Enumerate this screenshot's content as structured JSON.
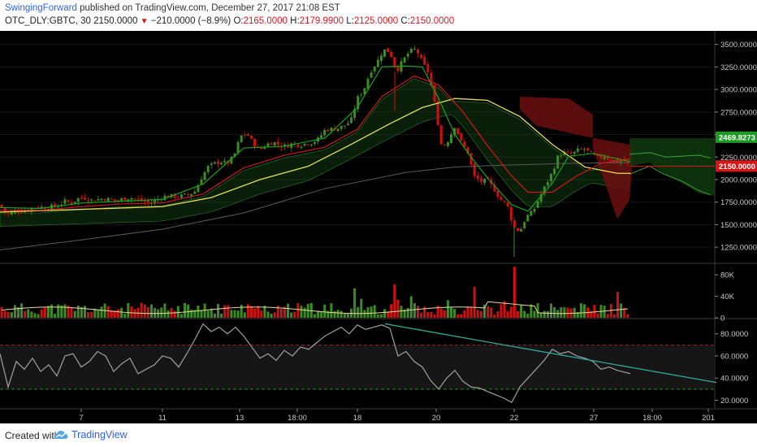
{
  "header": {
    "author": "SwingingForward",
    "published": "published on TradingView.com, December 27, 2017 21:08 EST",
    "symbol": "OTC_DLY:GBTC, 30",
    "last": "2150.0000",
    "change": "−210.0000 (−8.9%)",
    "o_label": "O:",
    "o_value": "2165.0000",
    "h_label": "H:",
    "h_value": "2179.9900",
    "l_label": "L:",
    "l_value": "2125.0000",
    "c_label": "C:",
    "c_value": "2150.0000"
  },
  "footer": {
    "created": "Created with",
    "brand": "TradingView"
  },
  "colors": {
    "up": "#3c8c23",
    "down": "#d01010",
    "ema_fast": "#19a319",
    "ema_slow": "#d01818",
    "ma_long": "#e6e050",
    "rsi": "#a0a0a0",
    "trend": "#30a89a"
  },
  "chart_data": [
    {
      "type": "candlestick",
      "panel": "price",
      "y_ticks": [
        "3500.0000",
        "3250.0000",
        "3000.0000",
        "2750.0000",
        "2500.0000",
        "2250.0000",
        "2000.0000",
        "1750.0000",
        "1500.0000",
        "1250.0000"
      ],
      "y_values": [
        3500,
        3250,
        3000,
        2750,
        2500,
        2250,
        2000,
        1750,
        1500,
        1250
      ],
      "ylim": [
        1080,
        3650
      ],
      "x_ticks": [
        "7",
        "11",
        "13",
        "18:00",
        "18",
        "20",
        "22",
        "27",
        "18:00",
        "201"
      ],
      "price_labels": [
        {
          "value": 2469.8273,
          "text": "2469.8273",
          "color": "#1d9a22"
        },
        {
          "value": 2150,
          "text": "2150.0000",
          "color": "#d81616"
        }
      ],
      "close_path": [
        [
          0,
          1720
        ],
        [
          8,
          1610
        ],
        [
          16,
          1640
        ],
        [
          24,
          1660
        ],
        [
          32,
          1650
        ],
        [
          40,
          1690
        ],
        [
          48,
          1700
        ],
        [
          56,
          1690
        ],
        [
          64,
          1700
        ],
        [
          72,
          1710
        ],
        [
          80,
          1760
        ],
        [
          88,
          1740
        ],
        [
          96,
          1790
        ],
        [
          104,
          1800
        ],
        [
          112,
          1770
        ],
        [
          120,
          1780
        ],
        [
          128,
          1790
        ],
        [
          136,
          1780
        ],
        [
          144,
          1760
        ],
        [
          152,
          1790
        ],
        [
          160,
          1800
        ],
        [
          168,
          1780
        ],
        [
          176,
          1760
        ],
        [
          184,
          1740
        ],
        [
          192,
          1770
        ],
        [
          200,
          1810
        ],
        [
          208,
          1820
        ],
        [
          216,
          1810
        ],
        [
          224,
          1820
        ],
        [
          232,
          1830
        ],
        [
          240,
          1870
        ],
        [
          248,
          2020
        ],
        [
          256,
          2140
        ],
        [
          264,
          2180
        ],
        [
          272,
          2200
        ],
        [
          280,
          2180
        ],
        [
          288,
          2260
        ],
        [
          296,
          2480
        ],
        [
          304,
          2510
        ],
        [
          312,
          2400
        ],
        [
          320,
          2330
        ],
        [
          328,
          2390
        ],
        [
          336,
          2420
        ],
        [
          344,
          2380
        ],
        [
          352,
          2370
        ],
        [
          360,
          2400
        ],
        [
          368,
          2380
        ],
        [
          376,
          2400
        ],
        [
          384,
          2410
        ],
        [
          392,
          2450
        ],
        [
          400,
          2550
        ],
        [
          408,
          2560
        ],
        [
          416,
          2570
        ],
        [
          424,
          2600
        ],
        [
          432,
          2650
        ],
        [
          440,
          2900
        ],
        [
          448,
          3000
        ],
        [
          456,
          3200
        ],
        [
          464,
          3300
        ],
        [
          472,
          3440
        ],
        [
          480,
          3420
        ],
        [
          488,
          3200
        ],
        [
          496,
          3320
        ],
        [
          504,
          3420
        ],
        [
          512,
          3450
        ],
        [
          520,
          3300
        ],
        [
          528,
          3180
        ],
        [
          536,
          2800
        ],
        [
          544,
          2350
        ],
        [
          552,
          2440
        ],
        [
          560,
          2600
        ],
        [
          568,
          2410
        ],
        [
          576,
          2300
        ],
        [
          584,
          2030
        ],
        [
          592,
          1980
        ],
        [
          600,
          1990
        ],
        [
          608,
          1900
        ],
        [
          616,
          1780
        ],
        [
          624,
          1730
        ],
        [
          632,
          1480
        ],
        [
          640,
          1420
        ],
        [
          648,
          1590
        ],
        [
          656,
          1640
        ],
        [
          664,
          1800
        ],
        [
          672,
          1940
        ],
        [
          680,
          2080
        ],
        [
          688,
          2280
        ],
        [
          696,
          2300
        ],
        [
          704,
          2280
        ],
        [
          712,
          2330
        ],
        [
          720,
          2340
        ],
        [
          728,
          2280
        ],
        [
          736,
          2240
        ],
        [
          744,
          2260
        ],
        [
          752,
          2220
        ],
        [
          760,
          2200
        ],
        [
          768,
          2210
        ],
        [
          776,
          2150
        ]
      ],
      "ema_fast": [
        [
          0,
          1690
        ],
        [
          50,
          1680
        ],
        [
          100,
          1740
        ],
        [
          150,
          1760
        ],
        [
          200,
          1780
        ],
        [
          250,
          1950
        ],
        [
          300,
          2350
        ],
        [
          350,
          2370
        ],
        [
          400,
          2460
        ],
        [
          440,
          2800
        ],
        [
          470,
          3250
        ],
        [
          500,
          3260
        ],
        [
          520,
          3250
        ],
        [
          540,
          2900
        ],
        [
          560,
          2500
        ],
        [
          580,
          2250
        ],
        [
          600,
          2020
        ],
        [
          630,
          1720
        ],
        [
          650,
          1650
        ],
        [
          680,
          1960
        ],
        [
          700,
          2260
        ],
        [
          730,
          2290
        ],
        [
          776,
          2200
        ]
      ],
      "ema_slow": [
        [
          0,
          1660
        ],
        [
          50,
          1660
        ],
        [
          100,
          1700
        ],
        [
          150,
          1730
        ],
        [
          200,
          1740
        ],
        [
          250,
          1840
        ],
        [
          300,
          2130
        ],
        [
          350,
          2270
        ],
        [
          400,
          2360
        ],
        [
          440,
          2560
        ],
        [
          470,
          2920
        ],
        [
          510,
          3150
        ],
        [
          540,
          3050
        ],
        [
          570,
          2750
        ],
        [
          600,
          2380
        ],
        [
          630,
          2040
        ],
        [
          650,
          1860
        ],
        [
          680,
          1860
        ],
        [
          710,
          2040
        ],
        [
          740,
          2180
        ],
        [
          776,
          2230
        ]
      ],
      "ma_long": [
        [
          0,
          1640
        ],
        [
          100,
          1670
        ],
        [
          200,
          1700
        ],
        [
          260,
          1800
        ],
        [
          320,
          2000
        ],
        [
          380,
          2150
        ],
        [
          430,
          2380
        ],
        [
          480,
          2620
        ],
        [
          520,
          2800
        ],
        [
          560,
          2900
        ],
        [
          600,
          2880
        ],
        [
          640,
          2700
        ],
        [
          680,
          2390
        ],
        [
          720,
          2140
        ],
        [
          760,
          2070
        ],
        [
          776,
          2070
        ]
      ],
      "ma_gray": [
        [
          0,
          1220
        ],
        [
          100,
          1330
        ],
        [
          200,
          1450
        ],
        [
          300,
          1630
        ],
        [
          400,
          1900
        ],
        [
          500,
          2080
        ],
        [
          560,
          2140
        ],
        [
          620,
          2160
        ],
        [
          700,
          2180
        ],
        [
          776,
          2190
        ]
      ]
    },
    {
      "type": "bar",
      "panel": "volume",
      "y_ticks": [
        "80K",
        "40K",
        "0"
      ],
      "y_values": [
        80000,
        40000,
        0
      ],
      "ylim": [
        0,
        100000
      ]
    },
    {
      "type": "line",
      "panel": "rsi",
      "y_ticks": [
        "80.0000",
        "60.0000",
        "40.0000",
        "20.0000"
      ],
      "y_values": [
        80,
        60,
        40,
        20
      ],
      "ylim": [
        13,
        93
      ],
      "bands": [
        70,
        30
      ],
      "rsi_path": [
        [
          0,
          62
        ],
        [
          10,
          32
        ],
        [
          20,
          55
        ],
        [
          30,
          48
        ],
        [
          40,
          58
        ],
        [
          50,
          46
        ],
        [
          60,
          52
        ],
        [
          70,
          42
        ],
        [
          80,
          60
        ],
        [
          90,
          62
        ],
        [
          100,
          50
        ],
        [
          110,
          55
        ],
        [
          120,
          64
        ],
        [
          130,
          60
        ],
        [
          140,
          46
        ],
        [
          150,
          53
        ],
        [
          160,
          58
        ],
        [
          170,
          44
        ],
        [
          180,
          48
        ],
        [
          190,
          52
        ],
        [
          200,
          60
        ],
        [
          210,
          58
        ],
        [
          220,
          50
        ],
        [
          230,
          62
        ],
        [
          240,
          75
        ],
        [
          250,
          89
        ],
        [
          260,
          82
        ],
        [
          270,
          86
        ],
        [
          280,
          80
        ],
        [
          290,
          86
        ],
        [
          300,
          78
        ],
        [
          310,
          68
        ],
        [
          320,
          58
        ],
        [
          330,
          62
        ],
        [
          340,
          56
        ],
        [
          350,
          65
        ],
        [
          360,
          60
        ],
        [
          370,
          68
        ],
        [
          380,
          66
        ],
        [
          390,
          72
        ],
        [
          400,
          78
        ],
        [
          410,
          82
        ],
        [
          420,
          86
        ],
        [
          430,
          80
        ],
        [
          440,
          88
        ],
        [
          450,
          84
        ],
        [
          460,
          86
        ],
        [
          470,
          88
        ],
        [
          480,
          85
        ],
        [
          490,
          60
        ],
        [
          500,
          64
        ],
        [
          510,
          55
        ],
        [
          520,
          50
        ],
        [
          530,
          38
        ],
        [
          540,
          30
        ],
        [
          550,
          40
        ],
        [
          560,
          47
        ],
        [
          570,
          37
        ],
        [
          580,
          32
        ],
        [
          590,
          31
        ],
        [
          600,
          28
        ],
        [
          610,
          25
        ],
        [
          620,
          22
        ],
        [
          630,
          18
        ],
        [
          640,
          32
        ],
        [
          650,
          40
        ],
        [
          660,
          48
        ],
        [
          670,
          56
        ],
        [
          680,
          66
        ],
        [
          690,
          62
        ],
        [
          700,
          64
        ],
        [
          710,
          60
        ],
        [
          720,
          58
        ],
        [
          730,
          55
        ],
        [
          740,
          48
        ],
        [
          750,
          50
        ],
        [
          760,
          47
        ],
        [
          776,
          44
        ]
      ],
      "trendline": [
        [
          474,
          89
        ],
        [
          882,
          36
        ]
      ]
    }
  ]
}
